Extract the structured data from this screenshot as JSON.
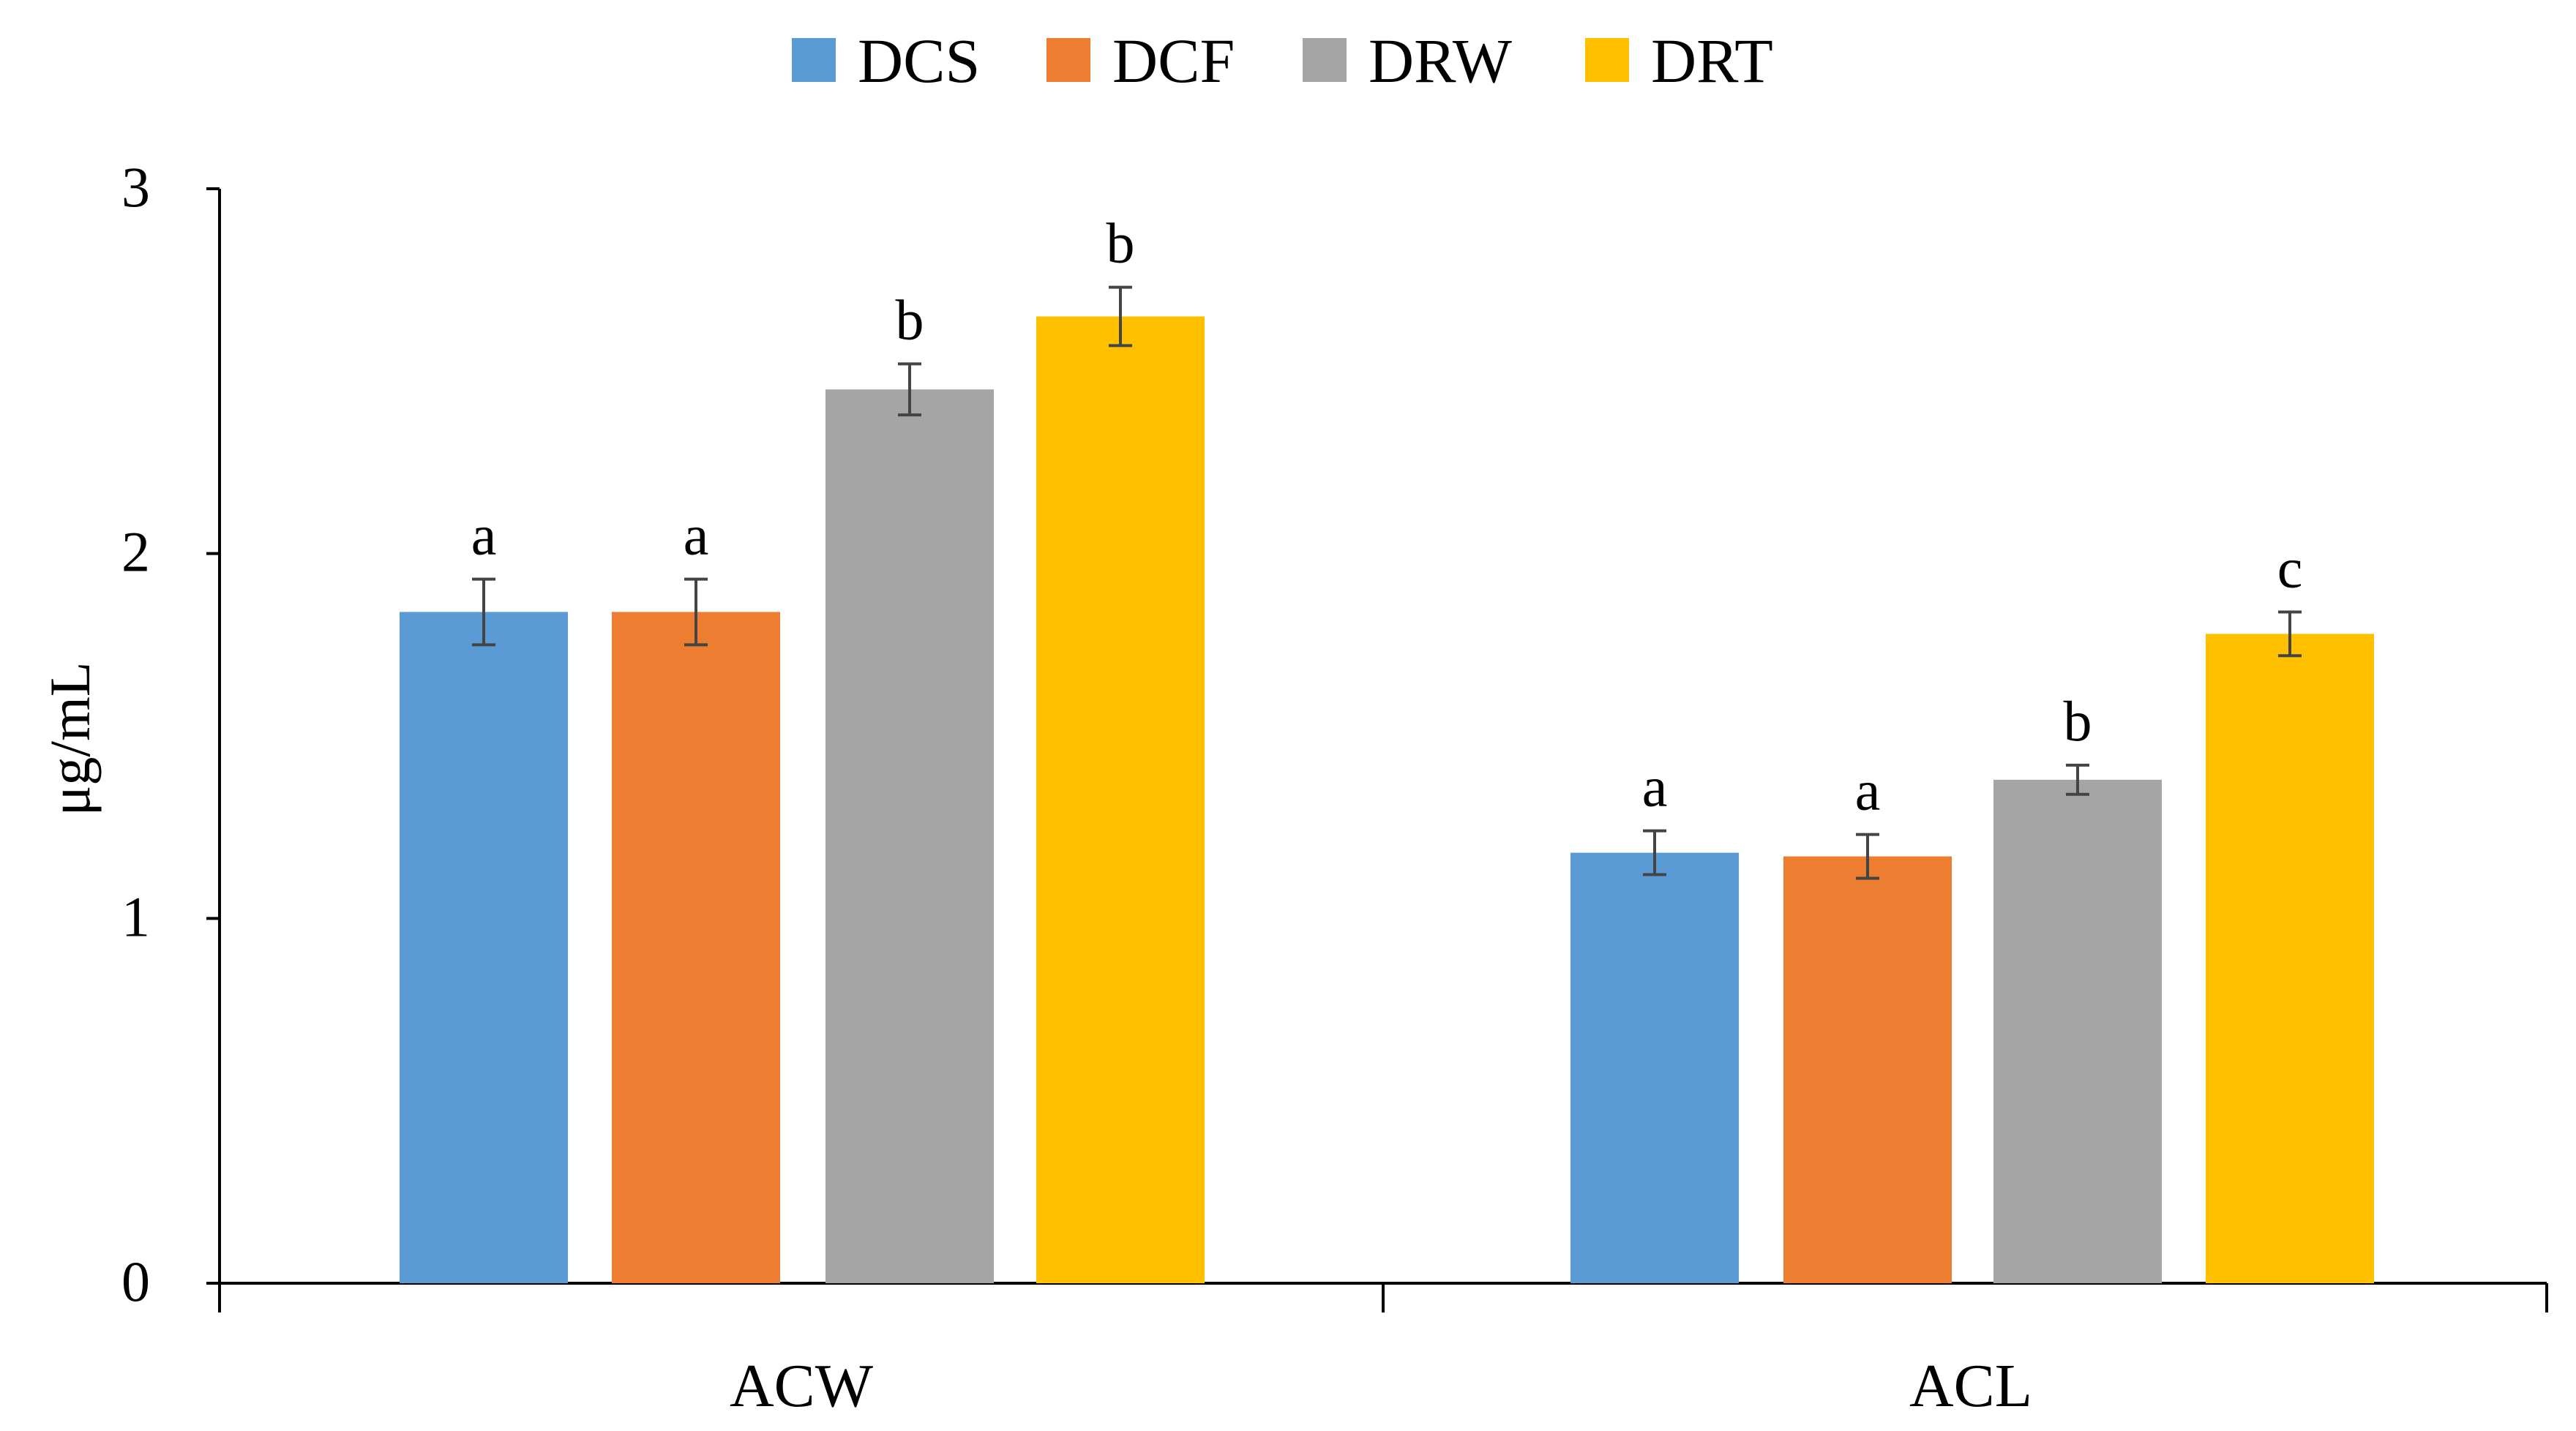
{
  "chart_data": {
    "type": "bar",
    "title": "",
    "xlabel": "",
    "ylabel": "μg/mL",
    "ylim": [
      0,
      3
    ],
    "yticks": [
      0,
      1,
      2,
      3
    ],
    "grid": false,
    "legend_position": "top-center",
    "categories": [
      "ACW",
      "ACL"
    ],
    "series": [
      {
        "name": "DCS",
        "color": "#5B9BD5",
        "values": [
          1.84,
          1.18
        ],
        "errors": [
          0.09,
          0.06
        ],
        "annotations": [
          "a",
          "a"
        ]
      },
      {
        "name": "DCF",
        "color": "#ED7D31",
        "values": [
          1.84,
          1.17
        ],
        "errors": [
          0.09,
          0.06
        ],
        "annotations": [
          "a",
          "a"
        ]
      },
      {
        "name": "DRW",
        "color": "#A5A5A5",
        "values": [
          2.45,
          1.38
        ],
        "errors": [
          0.07,
          0.04
        ],
        "annotations": [
          "b",
          "b"
        ]
      },
      {
        "name": "DRT",
        "color": "#FFC000",
        "values": [
          2.65,
          1.78
        ],
        "errors": [
          0.08,
          0.06
        ],
        "annotations": [
          "b",
          "c"
        ]
      }
    ]
  }
}
